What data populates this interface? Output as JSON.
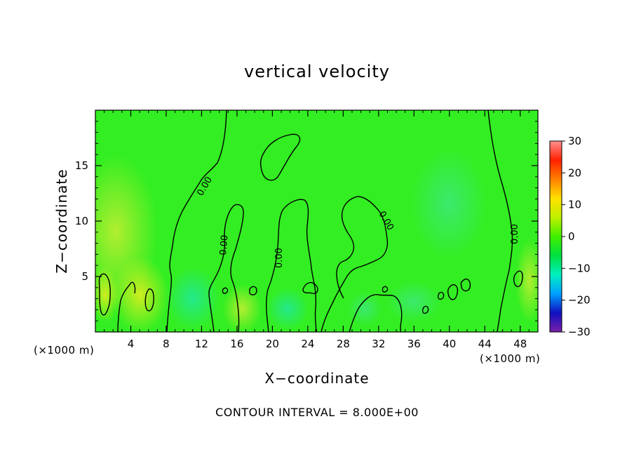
{
  "chart_data": {
    "type": "heatmap",
    "title": "vertical velocity",
    "xlabel": "X−coordinate",
    "ylabel": "Z−coordinate",
    "x_unit_left": "(×1000 m)",
    "x_unit_right": "(×1000 m)",
    "note": "CONTOUR INTERVAL = 8.000E+00",
    "xlim": [
      0,
      50
    ],
    "ylim": [
      0,
      20
    ],
    "x_ticks": [
      4,
      8,
      12,
      16,
      20,
      24,
      28,
      32,
      36,
      40,
      44,
      48
    ],
    "y_ticks": [
      5,
      10,
      15
    ],
    "colorbar": {
      "ticks": [
        30,
        20,
        10,
        0,
        -10,
        -20,
        -30
      ],
      "tick_labels": [
        "30",
        "20",
        "10",
        "0",
        "−10",
        "−20",
        "−30"
      ],
      "range": [
        -30,
        30
      ],
      "colors": [
        "#7a1fa8",
        "#1010c0",
        "#00a0ff",
        "#00f0c0",
        "#00e040",
        "#40f000",
        "#c0f000",
        "#ffe000",
        "#ff8000",
        "#ff2000",
        "#ff9090"
      ]
    },
    "contour_label": "0.00",
    "contour_interval": 8.0,
    "background_color": "#33ee22"
  }
}
